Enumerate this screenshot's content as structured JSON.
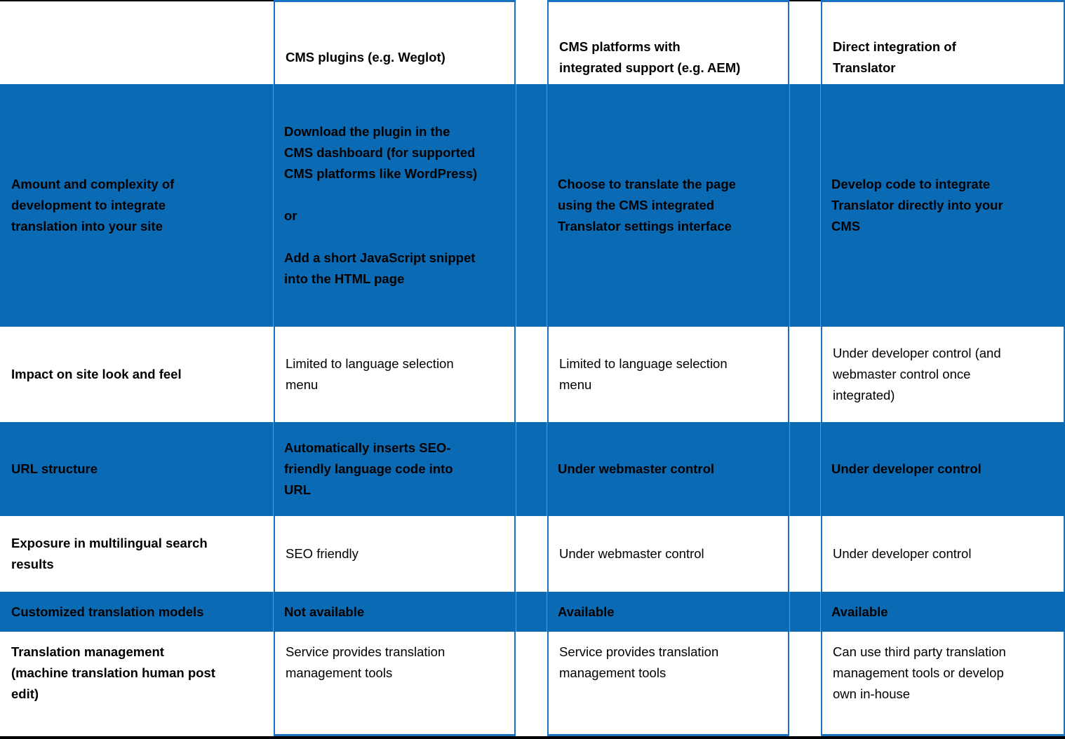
{
  "colors": {
    "blue_fill": "#0b6ab4",
    "blue_border": "#1671c1",
    "black_border": "#000000",
    "text": "#000000"
  },
  "table": {
    "header": {
      "cells": [
        "",
        "CMS plugins (e.g. Weglot)",
        "CMS platforms with\nintegrated support (e.g. AEM)",
        "Direct integration of\nTranslator"
      ]
    },
    "rows": [
      {
        "label": "Amount and complexity of\ndevelopment to integrate\ntranslation into your site",
        "cells": [
          "Download the plugin in the\nCMS dashboard (for supported\nCMS platforms like WordPress)\n\nor\n\nAdd a short JavaScript snippet\ninto the HTML page",
          "Choose to translate the page\nusing the CMS integrated\nTranslator settings interface",
          "Develop code to integrate\nTranslator directly into your\nCMS"
        ]
      },
      {
        "label": "Impact on site look and feel",
        "cells": [
          "Limited to language selection\nmenu",
          "Limited to language selection\nmenu",
          "Under developer control (and\nwebmaster control once\nintegrated)"
        ]
      },
      {
        "label": "URL structure",
        "cells": [
          "Automatically inserts SEO-\nfriendly language code into\nURL",
          "Under webmaster control",
          "Under developer control"
        ]
      },
      {
        "label": "Exposure in multilingual search\nresults",
        "cells": [
          "SEO friendly",
          "Under webmaster control",
          "Under developer control"
        ]
      },
      {
        "label": "Customized translation models",
        "cells": [
          "Not available",
          "Available",
          "Available"
        ]
      },
      {
        "label": "Translation management\n(machine translation human post\nedit)",
        "cells": [
          "Service provides translation\nmanagement tools",
          "Service provides translation\nmanagement tools",
          "Can use third party translation\nmanagement tools or develop\nown in-house"
        ]
      }
    ]
  }
}
